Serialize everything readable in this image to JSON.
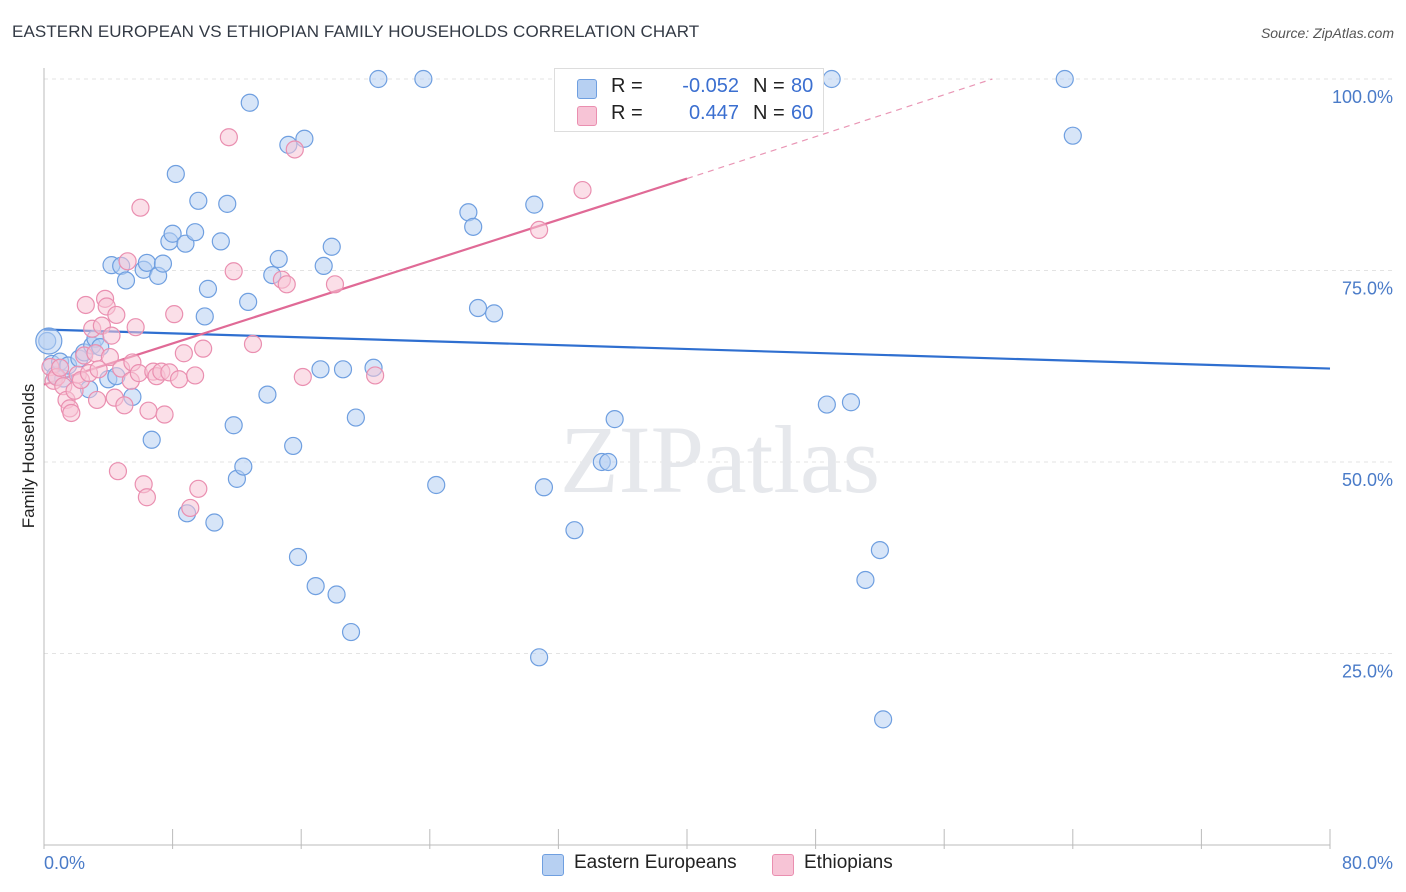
{
  "title": "EASTERN EUROPEAN VS ETHIOPIAN FAMILY HOUSEHOLDS CORRELATION CHART",
  "source": "Source: ZipAtlas.com",
  "watermark": "ZIPatlas",
  "legend": {
    "rows": [
      {
        "r_label": "R =",
        "r_value": "-0.052",
        "n_label": "N =",
        "n_value": "80",
        "fill": "#b7d0f2",
        "stroke": "#6f9fe0"
      },
      {
        "r_label": "R =",
        "r_value": "0.447",
        "n_label": "N =",
        "n_value": "60",
        "fill": "#f7c4d6",
        "stroke": "#ea8fb0"
      }
    ],
    "bottom": [
      {
        "label": "Eastern Europeans",
        "fill": "#b7d0f2",
        "stroke": "#6f9fe0"
      },
      {
        "label": "Ethiopians",
        "fill": "#f7c4d6",
        "stroke": "#ea8fb0"
      }
    ]
  },
  "chart_data": {
    "type": "scatter",
    "title": "EASTERN EUROPEAN VS ETHIOPIAN FAMILY HOUSEHOLDS CORRELATION CHART",
    "xlabel": "",
    "ylabel": "Family Households",
    "xlim": [
      0,
      80
    ],
    "ylim": [
      0,
      100
    ],
    "x_tick_labels": [
      {
        "value": 0,
        "label": "0.0%"
      },
      {
        "value": 80,
        "label": "80.0%"
      }
    ],
    "y_ticks": [
      {
        "value": 25,
        "label": "25.0%"
      },
      {
        "value": 50,
        "label": "50.0%"
      },
      {
        "value": 75,
        "label": "75.0%"
      },
      {
        "value": 100,
        "label": "100.0%"
      }
    ],
    "grid": true,
    "series": [
      {
        "name": "Eastern Europeans",
        "color": "#6f9fe0",
        "fill": "#b7d0f2",
        "trend": {
          "x": [
            0,
            80
          ],
          "y": [
            67.3,
            62.2
          ],
          "color": "#2f6fd0"
        },
        "points": [
          [
            0.2,
            65.8
          ],
          [
            0.5,
            62.8
          ],
          [
            0.7,
            61.3
          ],
          [
            1.0,
            63.1
          ],
          [
            1.2,
            60.9
          ],
          [
            1.5,
            62.6
          ],
          [
            2.2,
            63.5
          ],
          [
            2.5,
            64.3
          ],
          [
            3.0,
            65.2
          ],
          [
            3.2,
            66.1
          ],
          [
            3.5,
            65.0
          ],
          [
            4.0,
            60.8
          ],
          [
            4.2,
            75.7
          ],
          [
            4.8,
            75.6
          ],
          [
            5.1,
            73.7
          ],
          [
            5.5,
            58.5
          ],
          [
            6.2,
            75.1
          ],
          [
            6.4,
            76.0
          ],
          [
            6.7,
            52.9
          ],
          [
            7.1,
            74.3
          ],
          [
            7.4,
            75.9
          ],
          [
            7.8,
            78.8
          ],
          [
            8.0,
            79.8
          ],
          [
            8.2,
            87.6
          ],
          [
            8.8,
            78.5
          ],
          [
            8.9,
            43.3
          ],
          [
            9.4,
            80.0
          ],
          [
            9.6,
            84.1
          ],
          [
            10.0,
            69.0
          ],
          [
            10.2,
            72.6
          ],
          [
            10.6,
            42.1
          ],
          [
            11.0,
            78.8
          ],
          [
            11.4,
            83.7
          ],
          [
            11.8,
            54.8
          ],
          [
            12.0,
            47.8
          ],
          [
            12.4,
            49.4
          ],
          [
            12.7,
            70.9
          ],
          [
            12.8,
            96.9
          ],
          [
            13.9,
            58.8
          ],
          [
            14.2,
            74.4
          ],
          [
            14.6,
            76.5
          ],
          [
            15.2,
            91.4
          ],
          [
            15.5,
            52.1
          ],
          [
            15.8,
            37.6
          ],
          [
            16.2,
            92.2
          ],
          [
            16.9,
            33.8
          ],
          [
            17.2,
            62.1
          ],
          [
            17.4,
            75.6
          ],
          [
            17.9,
            78.1
          ],
          [
            18.2,
            32.7
          ],
          [
            18.6,
            62.1
          ],
          [
            19.1,
            27.8
          ],
          [
            19.4,
            55.8
          ],
          [
            20.5,
            62.3
          ],
          [
            20.8,
            100.0
          ],
          [
            23.6,
            100.0
          ],
          [
            24.4,
            47.0
          ],
          [
            26.4,
            82.6
          ],
          [
            26.7,
            80.7
          ],
          [
            27.0,
            70.1
          ],
          [
            28.0,
            69.4
          ],
          [
            30.5,
            83.6
          ],
          [
            30.8,
            24.5
          ],
          [
            31.1,
            46.7
          ],
          [
            33.0,
            41.1
          ],
          [
            34.7,
            50.0
          ],
          [
            35.1,
            50.0
          ],
          [
            35.5,
            55.6
          ],
          [
            37.0,
            100.0
          ],
          [
            38.8,
            100.0
          ],
          [
            48.7,
            57.5
          ],
          [
            50.2,
            57.8
          ],
          [
            49.0,
            100.0
          ],
          [
            51.1,
            34.6
          ],
          [
            52.0,
            38.5
          ],
          [
            52.2,
            16.4
          ],
          [
            63.5,
            100.0
          ],
          [
            64.0,
            92.6
          ],
          [
            2.8,
            59.5
          ],
          [
            4.5,
            61.2
          ]
        ]
      },
      {
        "name": "Ethiopians",
        "color": "#ea8fb0",
        "fill": "#f7c4d6",
        "trend": {
          "x": [
            0,
            40
          ],
          "y": [
            60.1,
            87.0
          ],
          "dash_to": {
            "x": 59,
            "y": 100
          },
          "color": "#e06a96"
        },
        "points": [
          [
            0.4,
            62.4
          ],
          [
            0.6,
            60.6
          ],
          [
            0.8,
            61.1
          ],
          [
            1.0,
            62.3
          ],
          [
            1.2,
            59.9
          ],
          [
            1.4,
            58.1
          ],
          [
            1.6,
            57.0
          ],
          [
            1.7,
            56.4
          ],
          [
            1.9,
            59.3
          ],
          [
            2.1,
            61.4
          ],
          [
            2.3,
            60.7
          ],
          [
            2.5,
            63.9
          ],
          [
            2.6,
            70.5
          ],
          [
            2.8,
            61.6
          ],
          [
            3.0,
            67.4
          ],
          [
            3.2,
            64.2
          ],
          [
            3.3,
            58.1
          ],
          [
            3.4,
            62.1
          ],
          [
            3.6,
            67.8
          ],
          [
            3.8,
            71.3
          ],
          [
            3.9,
            70.3
          ],
          [
            4.1,
            63.7
          ],
          [
            4.2,
            66.5
          ],
          [
            4.4,
            58.4
          ],
          [
            4.5,
            69.2
          ],
          [
            4.6,
            48.8
          ],
          [
            4.8,
            62.2
          ],
          [
            5.0,
            57.4
          ],
          [
            5.2,
            76.2
          ],
          [
            5.4,
            60.6
          ],
          [
            5.5,
            63.0
          ],
          [
            5.7,
            67.6
          ],
          [
            5.9,
            61.6
          ],
          [
            6.0,
            83.2
          ],
          [
            6.2,
            47.1
          ],
          [
            6.4,
            45.4
          ],
          [
            6.5,
            56.7
          ],
          [
            6.8,
            61.8
          ],
          [
            7.0,
            61.2
          ],
          [
            7.3,
            61.8
          ],
          [
            7.5,
            56.2
          ],
          [
            7.8,
            61.7
          ],
          [
            8.1,
            69.3
          ],
          [
            8.4,
            60.8
          ],
          [
            8.7,
            64.2
          ],
          [
            9.1,
            44.0
          ],
          [
            9.4,
            61.3
          ],
          [
            9.6,
            46.5
          ],
          [
            9.9,
            64.8
          ],
          [
            11.5,
            92.4
          ],
          [
            11.8,
            74.9
          ],
          [
            13.0,
            65.4
          ],
          [
            14.8,
            73.8
          ],
          [
            15.1,
            73.2
          ],
          [
            15.6,
            90.8
          ],
          [
            16.1,
            61.1
          ],
          [
            18.1,
            73.2
          ],
          [
            20.6,
            61.3
          ],
          [
            30.8,
            80.3
          ],
          [
            33.5,
            85.5
          ]
        ]
      }
    ]
  }
}
